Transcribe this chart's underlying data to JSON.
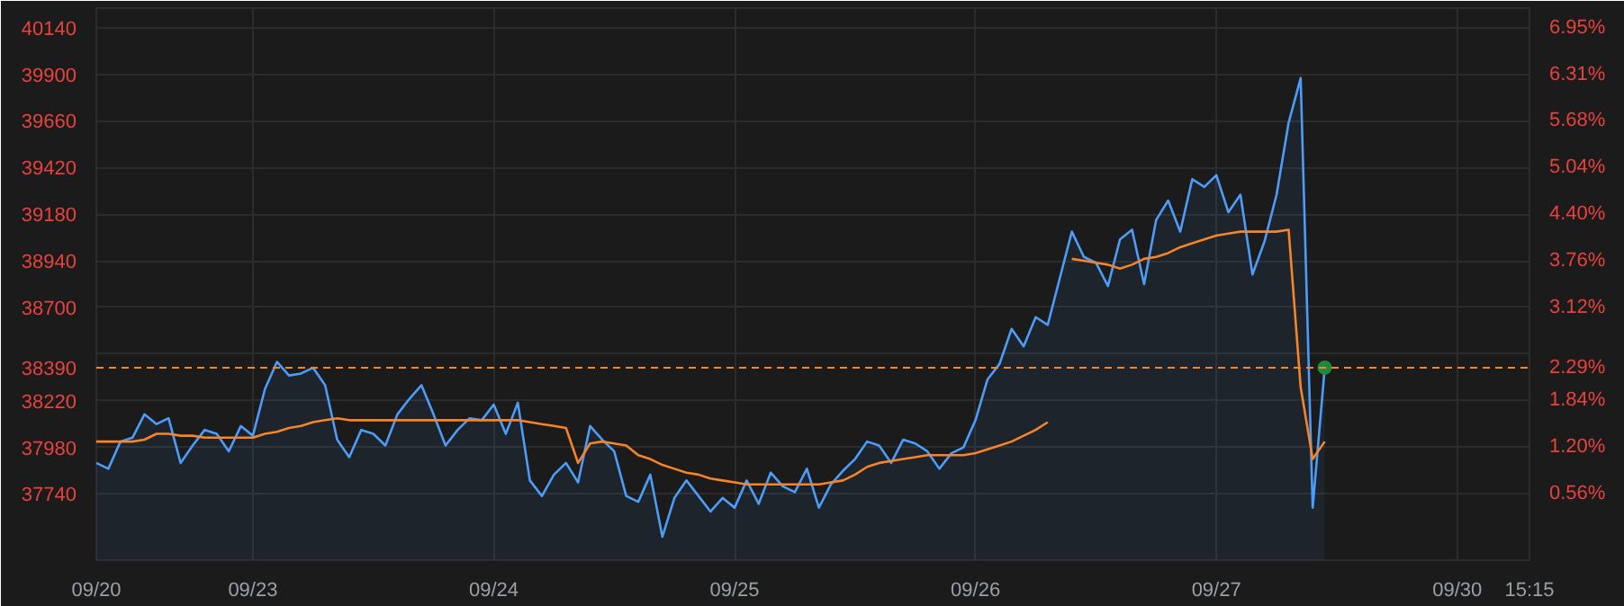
{
  "chart_data": {
    "type": "line",
    "categories": [
      "09/20",
      null,
      null,
      null,
      null,
      null,
      null,
      null,
      null,
      null,
      null,
      null,
      null,
      "09/23",
      null,
      null,
      null,
      null,
      null,
      null,
      null,
      null,
      null,
      null,
      null,
      null,
      null,
      null,
      null,
      null,
      null,
      null,
      null,
      "09/24",
      null,
      null,
      null,
      null,
      null,
      null,
      null,
      null,
      null,
      null,
      null,
      null,
      null,
      null,
      null,
      null,
      null,
      null,
      null,
      "09/25",
      null,
      null,
      null,
      null,
      null,
      null,
      null,
      null,
      null,
      null,
      null,
      null,
      null,
      null,
      null,
      null,
      null,
      null,
      null,
      "09/26",
      null,
      null,
      null,
      null,
      null,
      null,
      null,
      null,
      null,
      null,
      null,
      null,
      null,
      null,
      null,
      null,
      null,
      null,
      null,
      "09/27",
      null,
      null,
      null,
      null,
      null,
      null,
      null,
      null,
      null,
      null,
      null,
      null,
      null,
      null,
      null,
      null,
      null,
      null,
      null,
      "09/30",
      null,
      null,
      null,
      null,
      null,
      "15:15"
    ],
    "ylim": [
      37400,
      40240
    ],
    "yticks": [
      40140,
      39900,
      39660,
      39420,
      39180,
      38940,
      38700,
      {
        "value": 38460,
        "label": null
      },
      38220,
      37980,
      37740
    ],
    "y2lim": [
      -0.35,
      7.22
    ],
    "y2ticks": [
      {
        "value": 6.95,
        "label": "6.95%"
      },
      {
        "value": 6.31,
        "label": "6.31%"
      },
      {
        "value": 5.68,
        "label": "5.68%"
      },
      {
        "value": 5.04,
        "label": "5.04%"
      },
      {
        "value": 4.4,
        "label": "4.40%"
      },
      {
        "value": 3.76,
        "label": "3.76%"
      },
      {
        "value": 3.12,
        "label": "3.12%"
      },
      {
        "value": 2.49,
        "label": null
      },
      {
        "value": 2.29,
        "label": "2.29%"
      },
      {
        "value": 1.84,
        "label": "1.84%"
      },
      {
        "value": 1.2,
        "label": "1.20%"
      },
      {
        "value": 0.56,
        "label": "0.56%"
      }
    ],
    "grid": true,
    "series": [
      {
        "type": "area",
        "color": "#4d9cf8",
        "values": [
          37900,
          37870,
          38010,
          38030,
          38150,
          38100,
          38130,
          37900,
          37990,
          38070,
          38050,
          37960,
          38090,
          38040,
          38280,
          38420,
          38350,
          38360,
          38390,
          38300,
          38020,
          37930,
          38070,
          38050,
          37990,
          38150,
          38230,
          38300,
          38150,
          37990,
          38070,
          38130,
          38120,
          38200,
          38050,
          38210,
          37810,
          37730,
          37840,
          37900,
          37800,
          38090,
          38020,
          37960,
          37730,
          37700,
          37840,
          37520,
          37720,
          37810,
          37730,
          37650,
          37720,
          37670,
          37810,
          37690,
          37850,
          37780,
          37750,
          37870,
          37670,
          37790,
          37860,
          37920,
          38010,
          37990,
          37900,
          38020,
          38000,
          37960,
          37870,
          37950,
          37980,
          38120,
          38330,
          38410,
          38590,
          38500,
          38650,
          38610,
          38850,
          39090,
          38960,
          38930,
          38810,
          39050,
          39100,
          38820,
          39150,
          39250,
          39090,
          39360,
          39320,
          39380,
          39190,
          39280,
          38870,
          39040,
          39280,
          39650,
          39880,
          37670,
          38390,
          null,
          null,
          null,
          null,
          null,
          null,
          null,
          null,
          null,
          null,
          null,
          null,
          null,
          null,
          null,
          null,
          null
        ]
      },
      {
        "color": "#f5842b",
        "values": [
          38010,
          38010,
          38010,
          38010,
          38020,
          38050,
          38050,
          38040,
          38040,
          38030,
          38030,
          38030,
          38030,
          38030,
          38050,
          38060,
          38080,
          38090,
          38110,
          38120,
          38130,
          38120,
          38120,
          38120,
          38120,
          38120,
          38120,
          38120,
          38120,
          38120,
          38120,
          38120,
          38120,
          38120,
          38120,
          38120,
          38110,
          38100,
          38090,
          38080,
          37900,
          38000,
          38010,
          38000,
          37990,
          37940,
          37920,
          37890,
          37870,
          37850,
          37840,
          37820,
          37810,
          37800,
          37790,
          37790,
          37790,
          37790,
          37790,
          37790,
          37790,
          37800,
          37810,
          37840,
          37880,
          37900,
          37910,
          37920,
          37930,
          37940,
          37940,
          37940,
          37940,
          37950,
          37970,
          37990,
          38010,
          38040,
          38070,
          38110,
          null,
          38950,
          38940,
          38930,
          38920,
          38900,
          38920,
          38950,
          38960,
          38980,
          39010,
          39030,
          39050,
          39070,
          39080,
          39090,
          39090,
          39090,
          39090,
          39100,
          38290,
          37920,
          38010,
          null,
          null,
          null,
          null,
          null,
          null,
          null,
          null,
          null,
          null,
          null,
          null,
          null,
          null,
          null,
          null,
          null
        ]
      },
      {
        "type": "scatter",
        "color": "#1f8a3c",
        "values": [
          null,
          null,
          null,
          null,
          null,
          null,
          null,
          null,
          null,
          null,
          null,
          null,
          null,
          null,
          null,
          null,
          null,
          null,
          null,
          null,
          null,
          null,
          null,
          null,
          null,
          null,
          null,
          null,
          null,
          null,
          null,
          null,
          null,
          null,
          null,
          null,
          null,
          null,
          null,
          null,
          null,
          null,
          null,
          null,
          null,
          null,
          null,
          null,
          null,
          null,
          null,
          null,
          null,
          null,
          null,
          null,
          null,
          null,
          null,
          null,
          null,
          null,
          null,
          null,
          null,
          null,
          null,
          null,
          null,
          null,
          null,
          null,
          null,
          null,
          null,
          null,
          null,
          null,
          null,
          null,
          null,
          null,
          null,
          null,
          null,
          null,
          null,
          null,
          null,
          null,
          null,
          null,
          null,
          null,
          null,
          null,
          null,
          null,
          null,
          null,
          null,
          null,
          38390,
          null,
          null,
          null,
          null,
          null,
          null,
          null,
          null,
          null,
          null,
          null,
          null,
          null,
          null,
          null,
          null,
          null
        ]
      }
    ],
    "ref_lines": [
      {
        "axis": "y",
        "value": 38390,
        "label": "38390",
        "color": "#f5842b",
        "line_style": "dashed"
      }
    ]
  }
}
